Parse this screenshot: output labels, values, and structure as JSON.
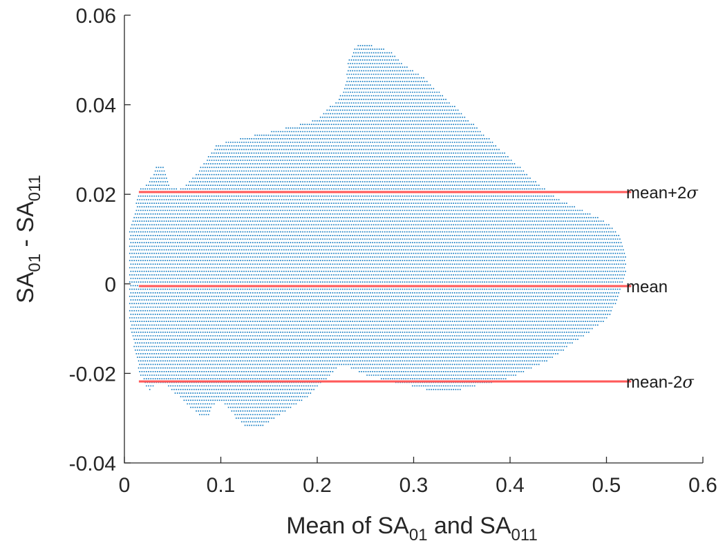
{
  "chart_data": {
    "type": "scatter",
    "xlabel": {
      "base": "Mean of SA",
      "sub1": "01",
      "mid": " and SA",
      "sub2": "011"
    },
    "ylabel": {
      "base": "SA",
      "sub1": "01",
      "mid": " - SA",
      "sub2": "011"
    },
    "xlim": [
      0,
      0.6
    ],
    "ylim": [
      -0.04,
      0.06
    ],
    "x_ticks": [
      0,
      0.1,
      0.2,
      0.3,
      0.4,
      0.5,
      0.6
    ],
    "x_tick_labels": [
      "0",
      "0.1",
      "0.2",
      "0.3",
      "0.4",
      "0.5",
      "0.6"
    ],
    "y_ticks": [
      -0.04,
      -0.02,
      0,
      0.02,
      0.04,
      0.06
    ],
    "y_tick_labels": [
      "-0.04",
      "-0.02",
      "0",
      "0.02",
      "0.04",
      "0.06"
    ],
    "grid": false,
    "point_color": "#0072bd",
    "line_color": "#ff5a5a",
    "reference_lines": [
      {
        "name": "mean+2σ",
        "label_base": "mean+2",
        "label_symbol": "σ",
        "y": 0.0205,
        "x_range": [
          0.015,
          0.52
        ]
      },
      {
        "name": "mean",
        "label_base": "mean",
        "label_symbol": "",
        "y": -0.0005,
        "x_range": [
          0.015,
          0.52
        ]
      },
      {
        "name": "mean-2σ",
        "label_base": "mean-2",
        "label_symbol": "σ",
        "y": -0.0218,
        "x_range": [
          0.015,
          0.52
        ]
      }
    ],
    "point_cloud": {
      "row_spacing_y": 0.0008,
      "point_spacing_x": 0.0023,
      "upper_boundary": [
        [
          0.005,
          0.012
        ],
        [
          0.015,
          0.021
        ],
        [
          0.025,
          0.023
        ],
        [
          0.032,
          0.026
        ],
        [
          0.04,
          0.026
        ],
        [
          0.047,
          0.022
        ],
        [
          0.055,
          0.021
        ],
        [
          0.063,
          0.022
        ],
        [
          0.075,
          0.025
        ],
        [
          0.085,
          0.028
        ],
        [
          0.095,
          0.031
        ],
        [
          0.11,
          0.032
        ],
        [
          0.13,
          0.033
        ],
        [
          0.15,
          0.034
        ],
        [
          0.17,
          0.035
        ],
        [
          0.19,
          0.036
        ],
        [
          0.2,
          0.037
        ],
        [
          0.21,
          0.039
        ],
        [
          0.22,
          0.041
        ],
        [
          0.228,
          0.044
        ],
        [
          0.232,
          0.05
        ],
        [
          0.24,
          0.053
        ],
        [
          0.248,
          0.054
        ],
        [
          0.26,
          0.053
        ],
        [
          0.275,
          0.052
        ],
        [
          0.29,
          0.049
        ],
        [
          0.31,
          0.046
        ],
        [
          0.33,
          0.042
        ],
        [
          0.35,
          0.038
        ],
        [
          0.37,
          0.034
        ],
        [
          0.39,
          0.03
        ],
        [
          0.41,
          0.026
        ],
        [
          0.43,
          0.022
        ],
        [
          0.45,
          0.019
        ],
        [
          0.47,
          0.017
        ],
        [
          0.49,
          0.015
        ],
        [
          0.505,
          0.013
        ],
        [
          0.515,
          0.01
        ],
        [
          0.52,
          0.007
        ]
      ],
      "lower_boundary": [
        [
          0.005,
          -0.009
        ],
        [
          0.015,
          -0.02
        ],
        [
          0.025,
          -0.024
        ],
        [
          0.035,
          -0.022
        ],
        [
          0.045,
          -0.023
        ],
        [
          0.055,
          -0.025
        ],
        [
          0.065,
          -0.027
        ],
        [
          0.075,
          -0.029
        ],
        [
          0.085,
          -0.03
        ],
        [
          0.095,
          -0.026
        ],
        [
          0.105,
          -0.027
        ],
        [
          0.115,
          -0.03
        ],
        [
          0.125,
          -0.032
        ],
        [
          0.14,
          -0.032
        ],
        [
          0.155,
          -0.03
        ],
        [
          0.17,
          -0.028
        ],
        [
          0.185,
          -0.026
        ],
        [
          0.2,
          -0.023
        ],
        [
          0.215,
          -0.02
        ],
        [
          0.225,
          -0.018
        ],
        [
          0.235,
          -0.019
        ],
        [
          0.245,
          -0.02
        ],
        [
          0.26,
          -0.021
        ],
        [
          0.28,
          -0.022
        ],
        [
          0.3,
          -0.023
        ],
        [
          0.32,
          -0.024
        ],
        [
          0.34,
          -0.024
        ],
        [
          0.36,
          -0.023
        ],
        [
          0.38,
          -0.022
        ],
        [
          0.4,
          -0.021
        ],
        [
          0.42,
          -0.019
        ],
        [
          0.44,
          -0.017
        ],
        [
          0.46,
          -0.014
        ],
        [
          0.48,
          -0.011
        ],
        [
          0.5,
          -0.008
        ],
        [
          0.51,
          -0.004
        ],
        [
          0.52,
          0.003
        ]
      ]
    }
  }
}
